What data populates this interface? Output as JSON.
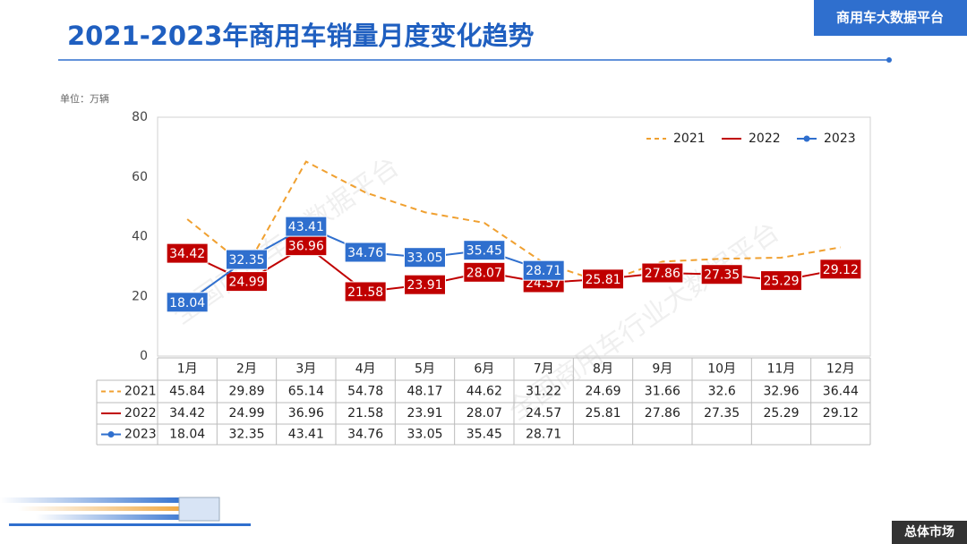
{
  "header": {
    "title": "2021-2023年商用车销量月度变化趋势",
    "badge": "商用车大数据平台",
    "footer_badge": "总体市场"
  },
  "watermarks": [
    "全国商用车大数据平台",
    "全国商用车行业大数据平台"
  ],
  "chart_data": {
    "type": "line",
    "unit": "单位：万辆",
    "categories": [
      "1月",
      "2月",
      "3月",
      "4月",
      "5月",
      "6月",
      "7月",
      "8月",
      "9月",
      "10月",
      "11月",
      "12月"
    ],
    "ylim": [
      0,
      80
    ],
    "yticks": [
      0,
      20,
      40,
      60,
      80
    ],
    "legend": "top-right",
    "series": [
      {
        "name": "2021",
        "color": "#f0a030",
        "style": "dashed",
        "values": [
          45.84,
          29.89,
          65.14,
          54.78,
          48.17,
          44.62,
          31.22,
          24.69,
          31.66,
          32.6,
          32.96,
          36.44
        ]
      },
      {
        "name": "2022",
        "color": "#c00000",
        "style": "solid",
        "labels": true,
        "values": [
          34.42,
          24.99,
          36.96,
          21.58,
          23.91,
          28.07,
          24.57,
          25.81,
          27.86,
          27.35,
          25.29,
          29.12
        ]
      },
      {
        "name": "2023",
        "color": "#2f6fce",
        "style": "marker",
        "labels": true,
        "values": [
          18.04,
          32.35,
          43.41,
          34.76,
          33.05,
          35.45,
          28.71,
          null,
          null,
          null,
          null,
          null
        ]
      }
    ]
  }
}
